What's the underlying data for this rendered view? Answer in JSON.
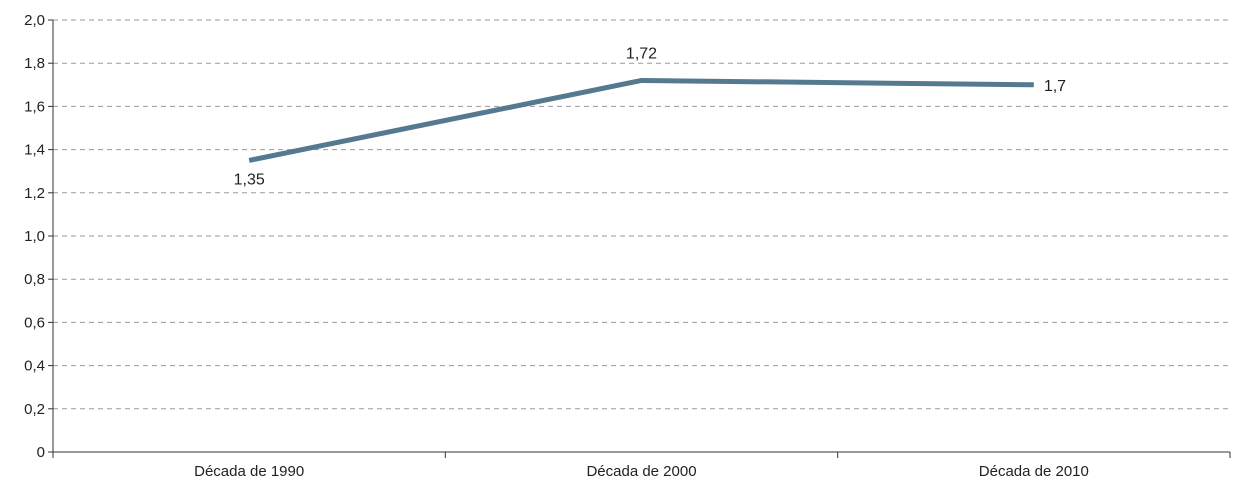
{
  "chart_data": {
    "type": "line",
    "title": "",
    "xlabel": "",
    "ylabel": "",
    "categories": [
      "Década de 1990",
      "Década de 2000",
      "Década de 2010"
    ],
    "series": [
      {
        "values": [
          1.35,
          1.72,
          1.7
        ],
        "color": "#557a90"
      }
    ],
    "data_labels": [
      "1,35",
      "1,72",
      "1,7"
    ],
    "ylim": [
      0,
      2.0
    ],
    "yticks": [
      0,
      0.2,
      0.4,
      0.6,
      0.8,
      1.0,
      1.2,
      1.4,
      1.6,
      1.8,
      2.0
    ],
    "ytick_labels": [
      "0",
      "0,2",
      "0,4",
      "0,6",
      "0,8",
      "1,0",
      "1,2",
      "1,4",
      "1,6",
      "1,8",
      "2,0"
    ],
    "grid": true,
    "legend": "none"
  }
}
